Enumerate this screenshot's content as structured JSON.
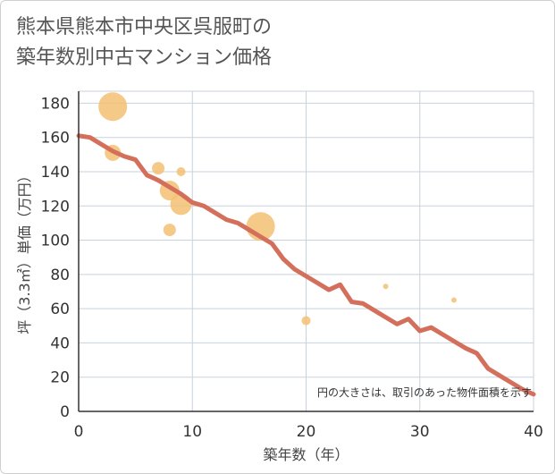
{
  "title_line1": "熊本県熊本市中央区呉服町の",
  "title_line2": "築年数別中古マンション価格",
  "chart_data": {
    "type": "scatter",
    "title": "熊本県熊本市中央区呉服町の築年数別中古マンション価格",
    "xlabel": "築年数（年）",
    "ylabel": "坪（3.3㎡）単価（万円）",
    "xlim": [
      0,
      40
    ],
    "ylim": [
      0,
      187
    ],
    "xticks": [
      0,
      10,
      20,
      30,
      40
    ],
    "yticks": [
      0,
      20,
      40,
      60,
      80,
      100,
      120,
      140,
      160,
      180
    ],
    "grid": true,
    "note": "円の大きさは、取引のあった物件面積を示す",
    "colors": {
      "bubble": "#f3c072",
      "line": "#d46f5c",
      "grid": "#c8d2dc"
    },
    "scatter_points": [
      {
        "x": 3,
        "y": 178,
        "size": 16
      },
      {
        "x": 3,
        "y": 151,
        "size": 9
      },
      {
        "x": 7,
        "y": 142,
        "size": 7
      },
      {
        "x": 8,
        "y": 129,
        "size": 11
      },
      {
        "x": 8,
        "y": 106,
        "size": 7
      },
      {
        "x": 9,
        "y": 140,
        "size": 5
      },
      {
        "x": 9,
        "y": 121,
        "size": 12
      },
      {
        "x": 16,
        "y": 108,
        "size": 16
      },
      {
        "x": 20,
        "y": 53,
        "size": 5
      },
      {
        "x": 27,
        "y": 73,
        "size": 3
      },
      {
        "x": 33,
        "y": 65,
        "size": 3
      }
    ],
    "trend_line": {
      "x": [
        0,
        1,
        2,
        3,
        4,
        5,
        6,
        7,
        8,
        9,
        10,
        11,
        12,
        13,
        14,
        15,
        16,
        17,
        18,
        19,
        20,
        21,
        22,
        23,
        24,
        25,
        26,
        27,
        28,
        29,
        30,
        31,
        32,
        33,
        34,
        35,
        36,
        37,
        38,
        39,
        40
      ],
      "y": [
        161,
        160,
        156,
        152,
        149,
        147,
        138,
        135,
        131,
        127,
        122,
        120,
        116,
        112,
        110,
        106,
        102,
        98,
        89,
        83,
        79,
        75,
        71,
        74,
        64,
        63,
        59,
        55,
        51,
        54,
        47,
        49,
        45,
        41,
        37,
        34,
        25,
        21,
        17,
        13,
        10
      ]
    }
  }
}
